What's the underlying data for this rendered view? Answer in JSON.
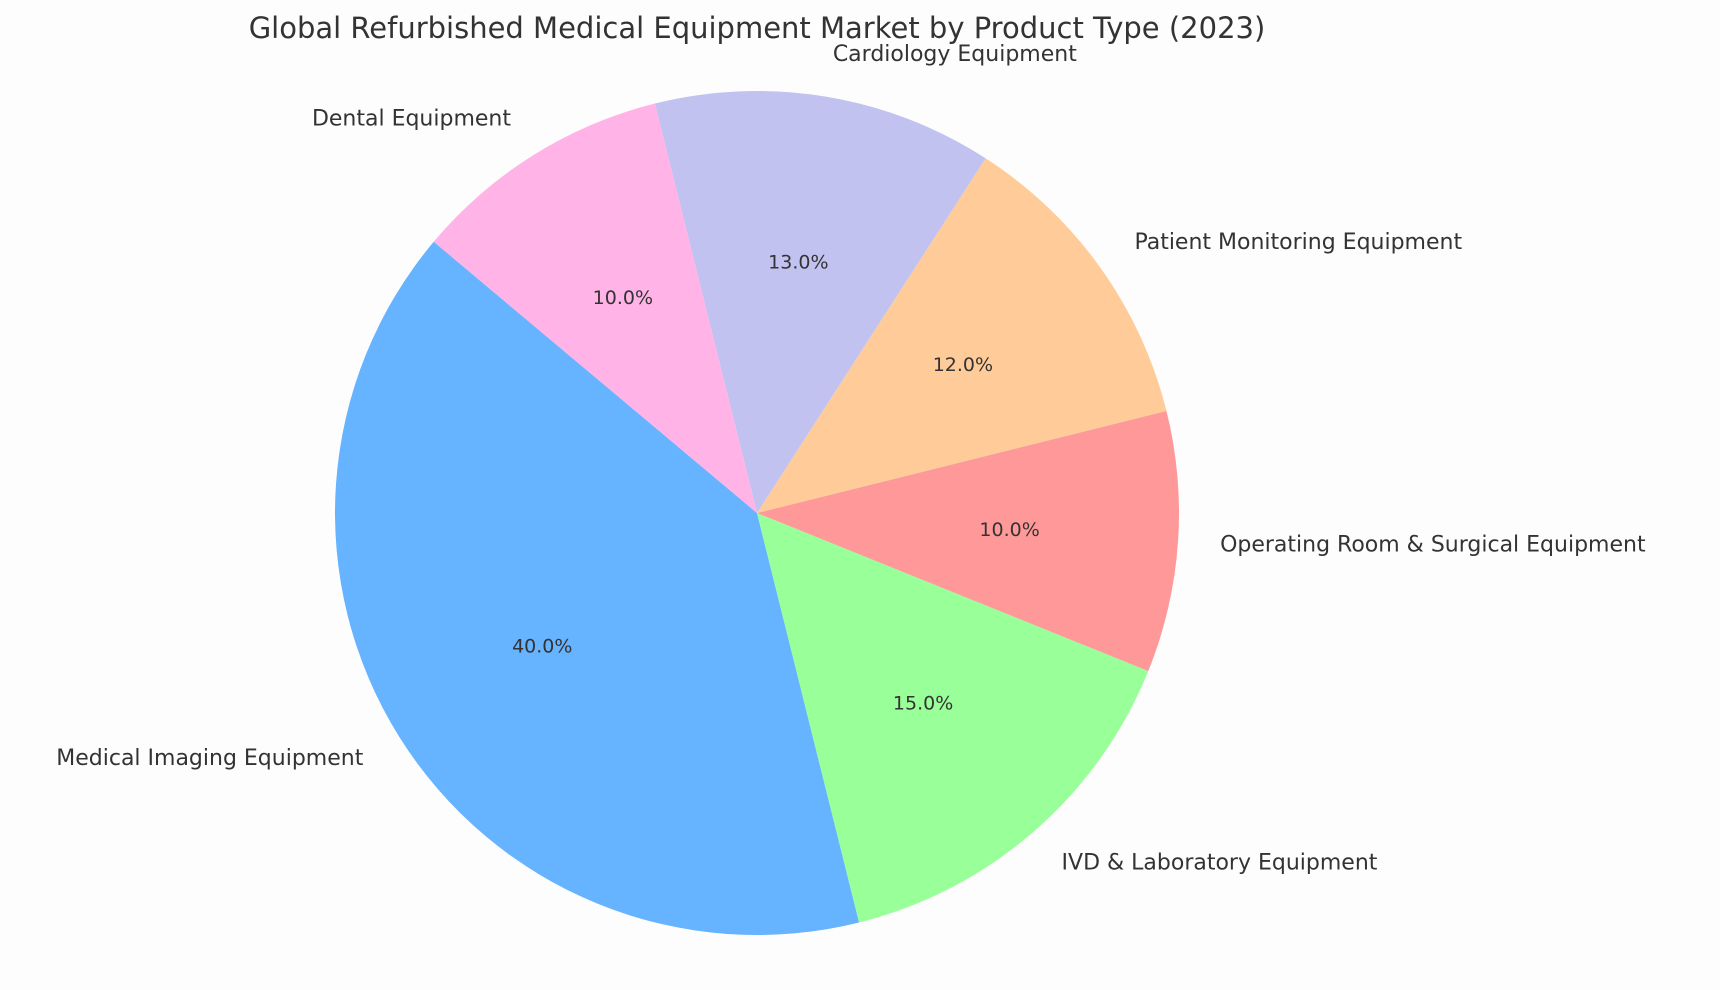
{
  "chart_data": {
    "type": "pie",
    "title": "Global Refurbished Medical Equipment Market by Product Type (2023)",
    "categories": [
      "Medical Imaging Equipment",
      "IVD & Laboratory Equipment",
      "Operating Room & Surgical Equipment",
      "Patient Monitoring Equipment",
      "Cardiology Equipment",
      "Dental Equipment"
    ],
    "values": [
      40,
      15,
      10,
      12,
      13,
      10
    ],
    "value_labels": [
      "40.0%",
      "15.0%",
      "10.0%",
      "12.0%",
      "13.0%",
      "10.0%"
    ],
    "colors": [
      "#66b3ff",
      "#99ff99",
      "#ff9999",
      "#ffcc99",
      "#c2c2f0",
      "#ffb3e6"
    ]
  }
}
